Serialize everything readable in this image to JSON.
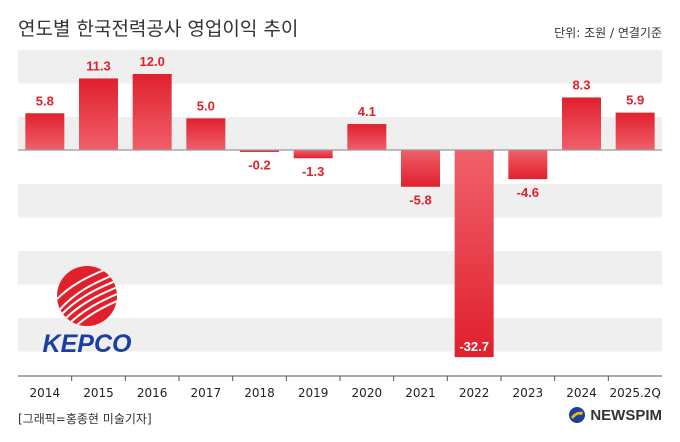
{
  "header": {
    "title": "연도별 한국전력공사 영업이익 추이",
    "unit": "단위: 조원 / 연결기준"
  },
  "footer": {
    "credit": "[그래픽=홍종현 미술기자]",
    "brand": "NEWSPIM"
  },
  "logo": {
    "text": "KEPCO"
  },
  "colors": {
    "bar": "#e0202e",
    "bar_light": "#f0606a",
    "label_positive": "#e0202e",
    "label_negative": "#e0202e",
    "stripe": "#efefef",
    "baseline": "#999999",
    "brand_blue": "#1a3fa0"
  },
  "chart_data": {
    "type": "bar",
    "title": "연도별 한국전력공사 영업이익 추이",
    "ylabel": "조원",
    "categories": [
      "2014",
      "2015",
      "2016",
      "2017",
      "2018",
      "2019",
      "2020",
      "2021",
      "2022",
      "2023",
      "2024",
      "2025.2Q"
    ],
    "values": [
      5.8,
      11.3,
      12.0,
      5.0,
      -0.2,
      -1.3,
      4.1,
      -5.8,
      -32.7,
      -4.6,
      8.3,
      5.9
    ],
    "labels": [
      "5.8",
      "11.3",
      "12.0",
      "5.0",
      "-0.2",
      "-1.3",
      "4.1",
      "-5.8",
      "-32.7",
      "-4.6",
      "8.3",
      "5.9"
    ],
    "ylim": [
      -34.8,
      14.5
    ]
  }
}
